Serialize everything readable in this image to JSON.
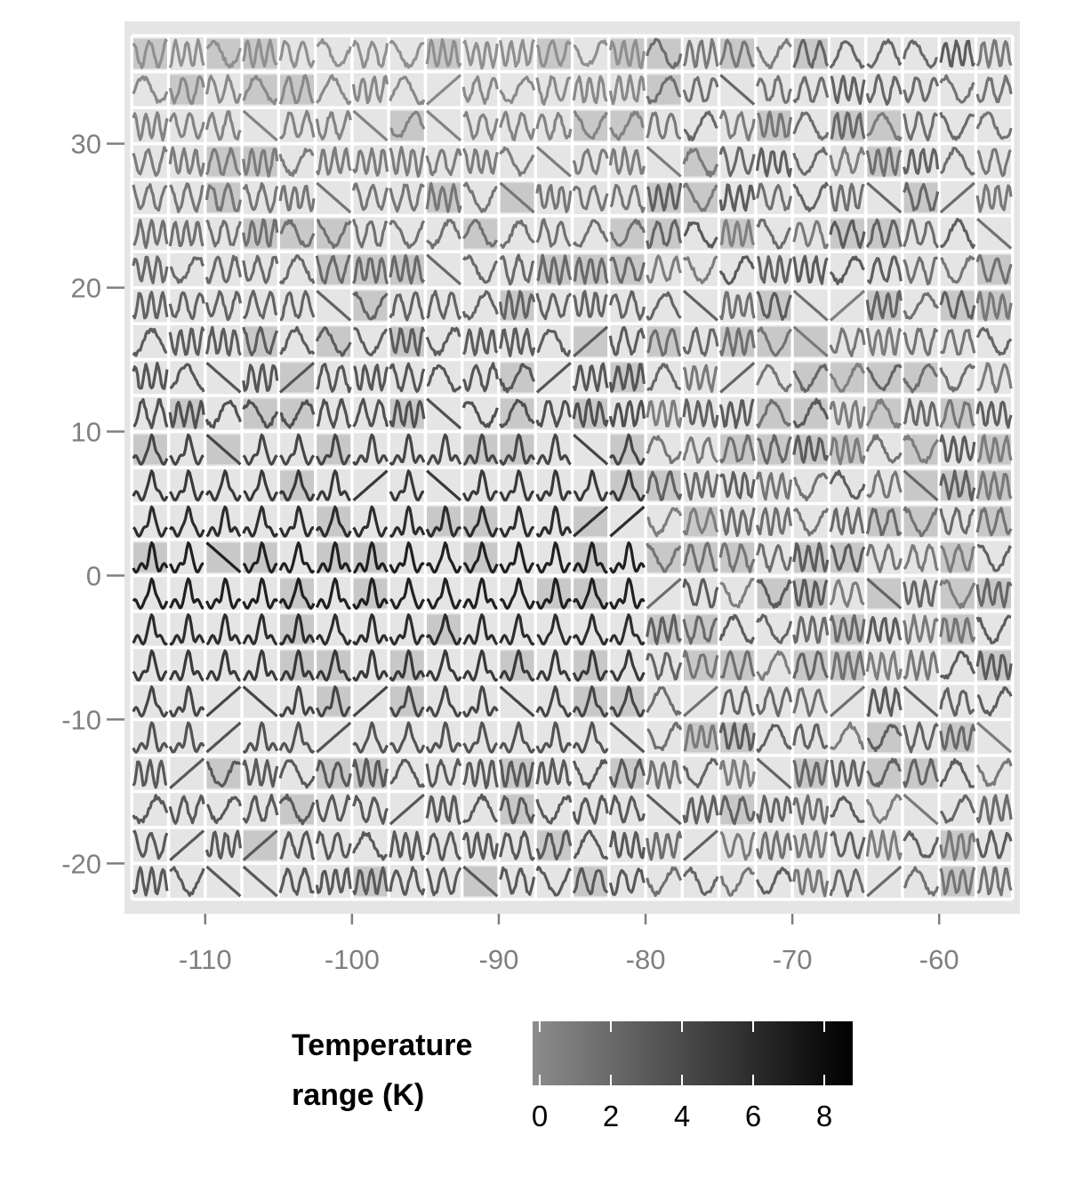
{
  "chart_data": {
    "type": "line",
    "subtype": "glyph-map",
    "title": "",
    "xlabel": "",
    "ylabel": "",
    "x_range": [
      -115.5,
      -54.5
    ],
    "y_range": [
      -23.5,
      38.5
    ],
    "x_ticks": [
      -110,
      -100,
      -90,
      -80,
      -70,
      -60
    ],
    "y_ticks": [
      -20,
      -10,
      0,
      10,
      20,
      30
    ],
    "x_tick_labels": [
      "-110",
      "-100",
      "-90",
      "-80",
      "-70",
      "-60"
    ],
    "y_tick_labels": [
      "-20",
      "-10",
      "0",
      "10",
      "20",
      "30"
    ],
    "grid": {
      "cols": 24,
      "rows": 24,
      "lon_start": -113.75,
      "lon_step": 2.5,
      "lat_start": -21.25,
      "lat_step": 2.5
    },
    "series_description": "Each cell shows the monthly temperature time series at that location; line darkness encodes the temperature range.",
    "panel_background": "#e5e5e5",
    "gridline_color": "#ffffff",
    "legend": {
      "title_line1": "Temperature",
      "title_line2": "range (K)",
      "position": "bottom",
      "range": [
        -0.2,
        8.8
      ],
      "ticks": [
        0,
        2,
        4,
        6,
        8
      ],
      "tick_labels": [
        "0",
        "2",
        "4",
        "6",
        "8"
      ],
      "color_low": "#8c8c8c",
      "color_high": "#000000"
    }
  }
}
